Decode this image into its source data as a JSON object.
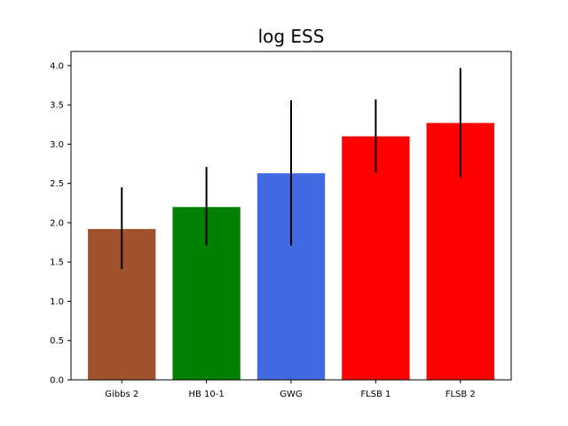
{
  "chart_data": {
    "type": "bar",
    "title": "log ESS",
    "xlabel": "",
    "ylabel": "",
    "categories": [
      "Gibbs 2",
      "HB 10-1",
      "GWG",
      "FLSB 1",
      "FLSB 2"
    ],
    "values": [
      1.92,
      2.2,
      2.63,
      3.1,
      3.27
    ],
    "error_low": [
      1.41,
      1.71,
      1.71,
      2.64,
      2.58
    ],
    "error_high": [
      2.45,
      2.71,
      3.56,
      3.57,
      3.97
    ],
    "colors": [
      "#a0522d",
      "#008000",
      "#4169e1",
      "#ff0000",
      "#ff0000"
    ],
    "error_color": "#000000",
    "ylim": [
      0,
      4.18
    ],
    "yticks": [
      "0.0",
      "0.5",
      "1.0",
      "1.5",
      "2.0",
      "2.5",
      "3.0",
      "3.5",
      "4.0"
    ],
    "grid": false,
    "legend": "none"
  }
}
